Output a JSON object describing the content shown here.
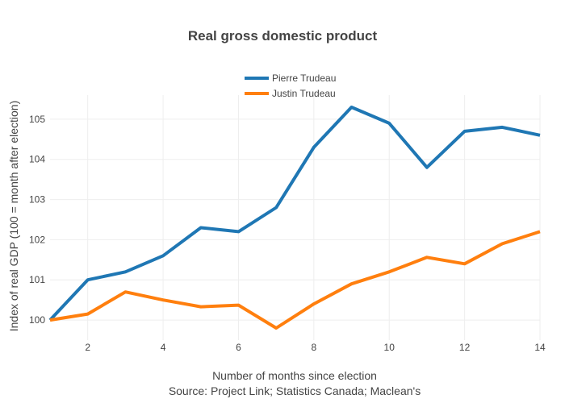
{
  "chart_data": {
    "type": "line",
    "title": "Real gross domestic product",
    "xlabel": "Number of months since election",
    "xlabel_note": "Source: Project Link; Statistics Canada; Maclean's",
    "ylabel": "Index of real GDP (100 = month after election)",
    "xlim": [
      1,
      14
    ],
    "ylim": [
      99.5,
      105.6
    ],
    "xticks": [
      2,
      4,
      6,
      8,
      10,
      12,
      14
    ],
    "yticks": [
      100,
      101,
      102,
      103,
      104,
      105
    ],
    "grid": true,
    "legend_position": "top-center",
    "x": [
      1,
      2,
      3,
      4,
      5,
      6,
      7,
      8,
      9,
      10,
      11,
      12,
      13,
      14
    ],
    "series": [
      {
        "name": "Pierre Trudeau",
        "color": "#1f77b4",
        "values": [
          100.0,
          101.0,
          101.2,
          101.6,
          102.3,
          102.2,
          102.8,
          104.3,
          105.3,
          104.9,
          103.8,
          104.7,
          104.8,
          104.6
        ]
      },
      {
        "name": "Justin Trudeau",
        "color": "#ff7f0e",
        "values": [
          100.0,
          100.15,
          100.7,
          100.5,
          100.33,
          100.37,
          99.8,
          100.4,
          100.9,
          101.2,
          101.56,
          101.4,
          101.9,
          102.2
        ]
      }
    ]
  }
}
